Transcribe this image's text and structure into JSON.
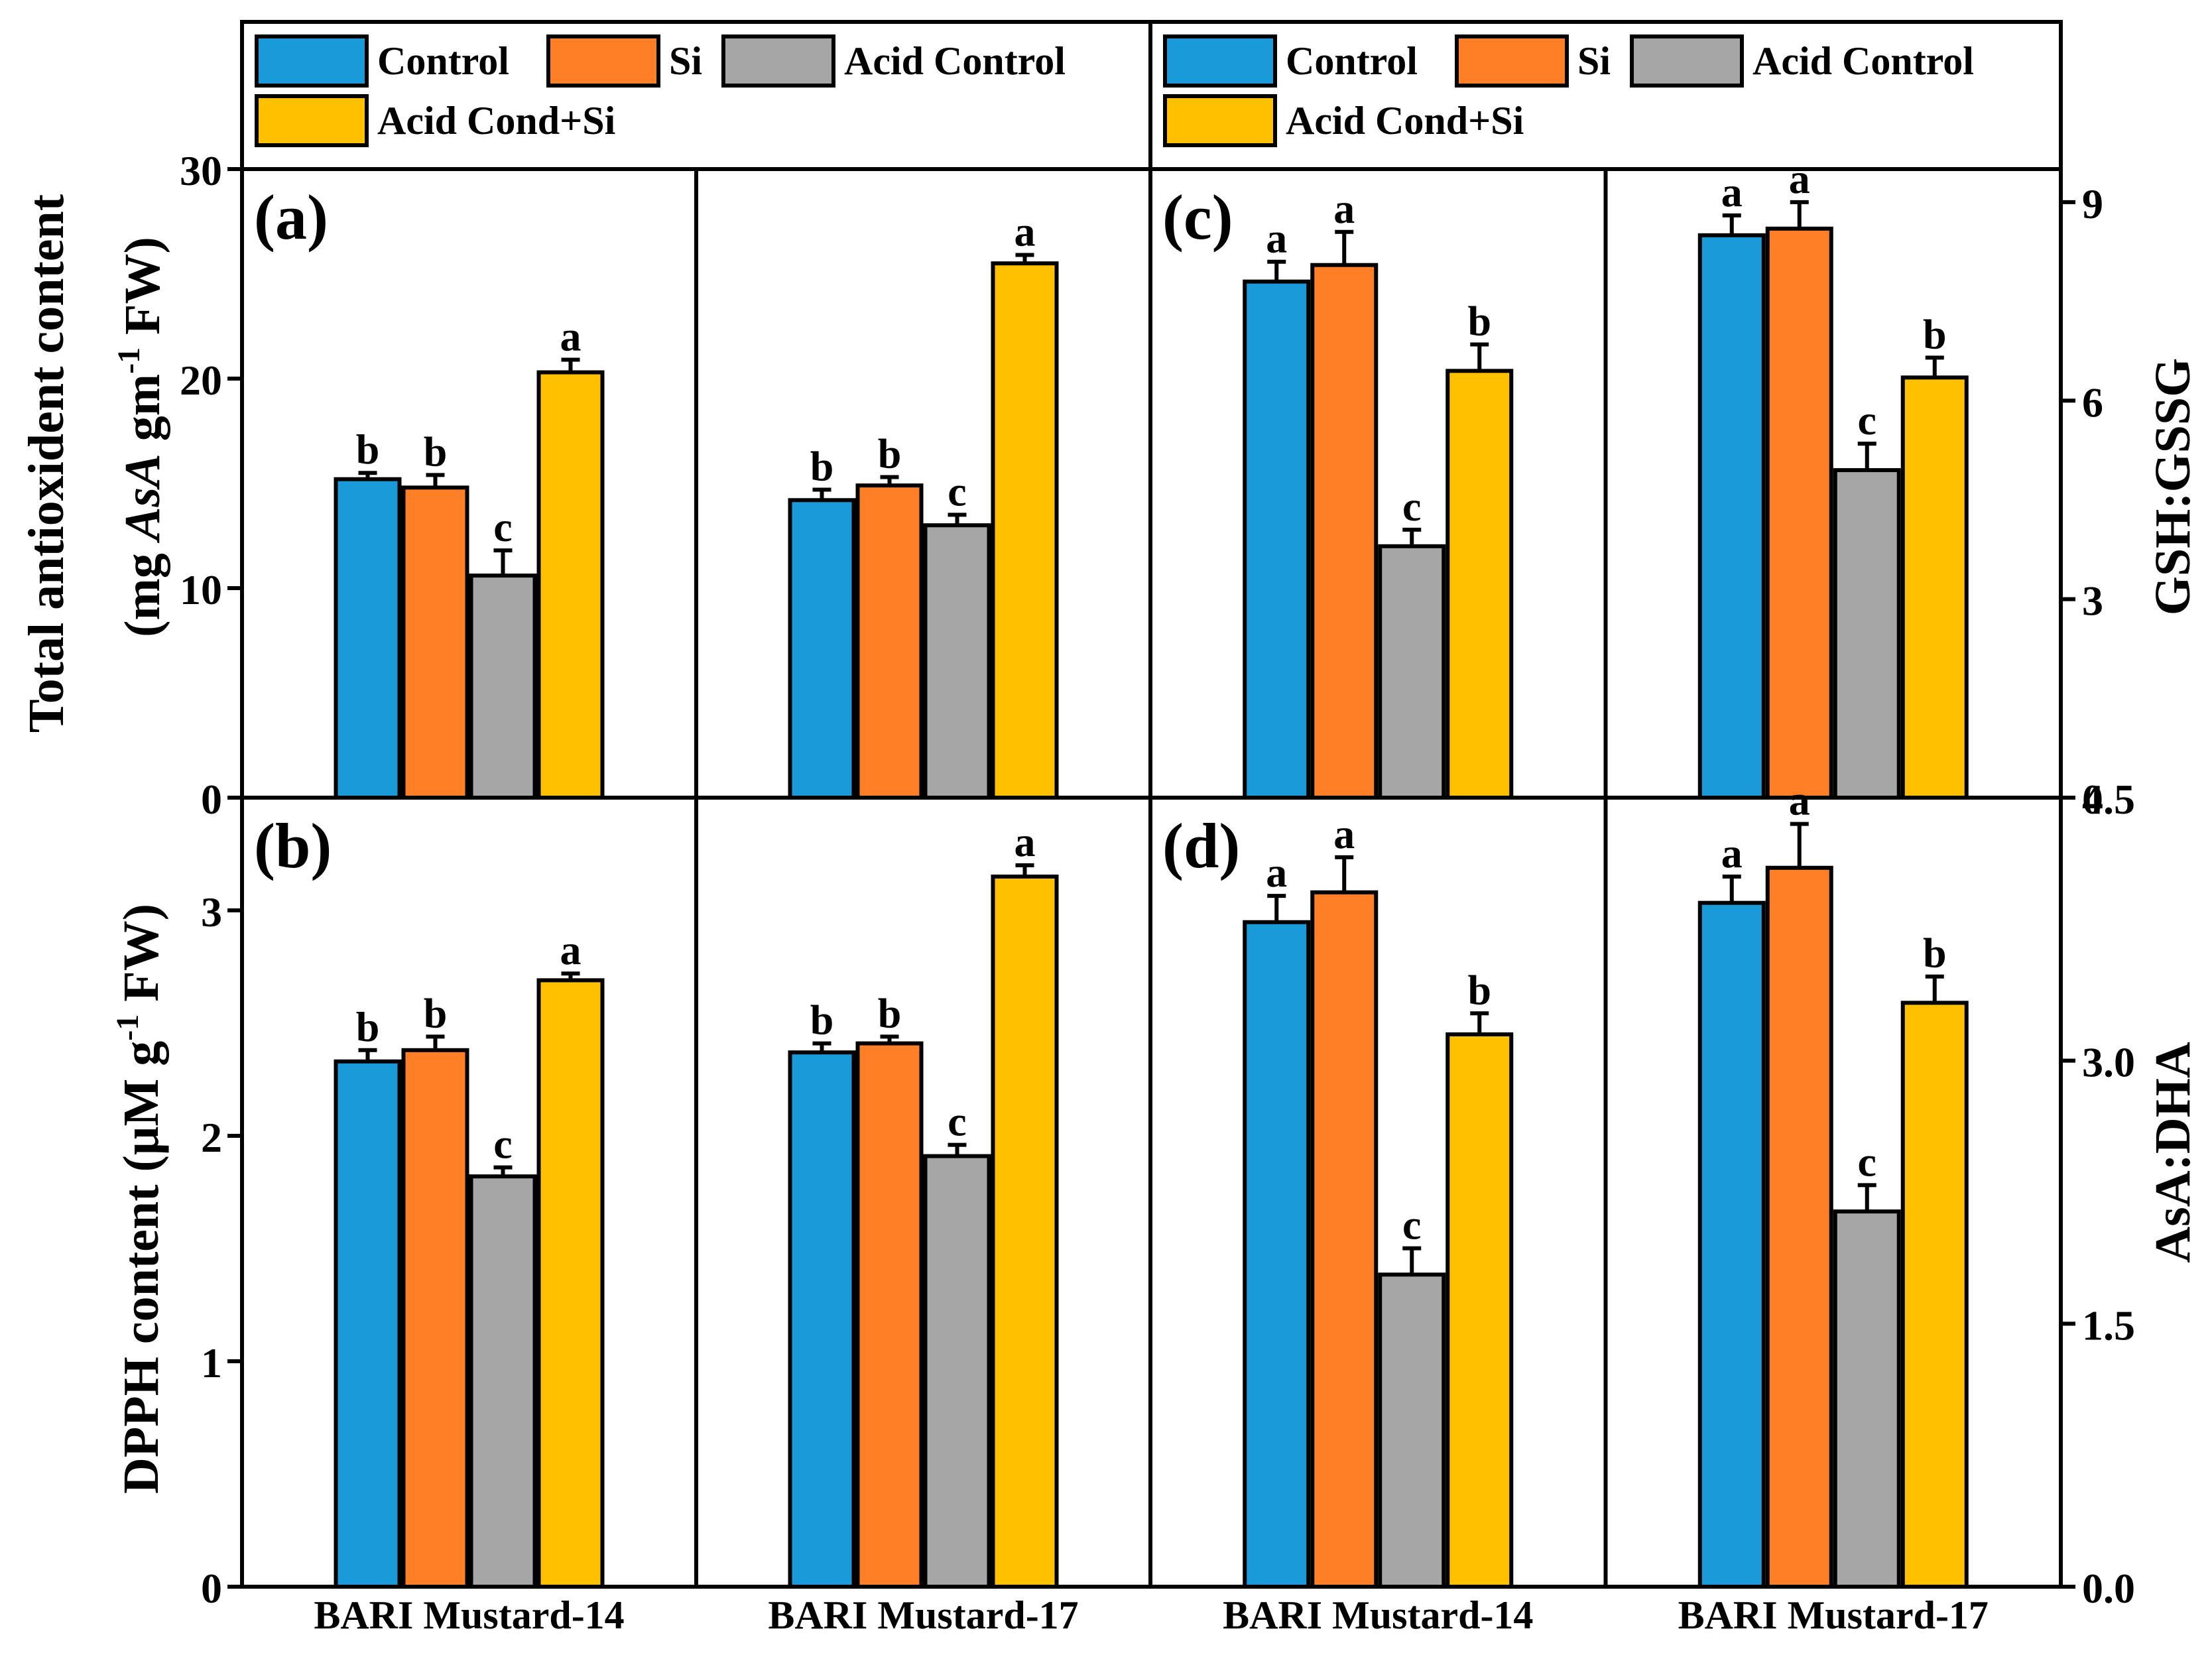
{
  "colors": {
    "Control": "#1B9AD9",
    "Si": "#FF7F27",
    "Acid Control": "#A6A6A6",
    "Acid Cond+Si": "#FFC000"
  },
  "legend": {
    "labels": [
      "Control",
      "Si",
      "Acid Control",
      "Acid Cond+Si"
    ]
  },
  "chart_data": [
    {
      "id": "a",
      "panel_label": "(a)",
      "type": "bar",
      "ylabel_line1": "Total antioxident content",
      "ylabel_line2": "(mg AsA gm-1 FW)",
      "ylabel_parts": {
        "pre": "(mg ",
        "italic": "AsA",
        "mid": " gm",
        "sup": "-1",
        "post": " FW)"
      },
      "ylim": [
        0,
        30
      ],
      "yticks": [
        0,
        10,
        20,
        30
      ],
      "tick_labels": [
        "0",
        "10",
        "20",
        "30"
      ],
      "axis_side": "left",
      "categories": [
        "BARI Mustard-14",
        "BARI Mustard-17"
      ],
      "series": [
        {
          "name": "Control",
          "values": [
            15.2,
            14.2
          ],
          "errors": [
            0.3,
            0.5
          ],
          "letters": [
            "b",
            "b"
          ]
        },
        {
          "name": "Si",
          "values": [
            14.8,
            14.9
          ],
          "errors": [
            0.6,
            0.4
          ],
          "letters": [
            "b",
            "b"
          ]
        },
        {
          "name": "Acid Control",
          "values": [
            10.6,
            13.0
          ],
          "errors": [
            1.2,
            0.5
          ],
          "letters": [
            "c",
            "c"
          ]
        },
        {
          "name": "Acid Cond+Si",
          "values": [
            20.3,
            25.5
          ],
          "errors": [
            0.6,
            0.4
          ],
          "letters": [
            "a",
            "a"
          ]
        }
      ]
    },
    {
      "id": "b",
      "panel_label": "(b)",
      "type": "bar",
      "ylabel_line1": "DPPH content (µM g-1 FW)",
      "ylabel_parts": {
        "pre": "DPPH content (µM g",
        "sup": "-1",
        "post": " FW)"
      },
      "ylim": [
        0,
        3.5
      ],
      "yticks": [
        0,
        1,
        2,
        3
      ],
      "tick_labels": [
        "0",
        "1",
        "2",
        "3"
      ],
      "axis_side": "left",
      "categories": [
        "BARI Mustard-14",
        "BARI Mustard-17"
      ],
      "series": [
        {
          "name": "Control",
          "values": [
            2.33,
            2.37
          ],
          "errors": [
            0.05,
            0.04
          ],
          "letters": [
            "b",
            "b"
          ]
        },
        {
          "name": "Si",
          "values": [
            2.38,
            2.41
          ],
          "errors": [
            0.06,
            0.03
          ],
          "letters": [
            "b",
            "b"
          ]
        },
        {
          "name": "Acid Control",
          "values": [
            1.82,
            1.91
          ],
          "errors": [
            0.04,
            0.05
          ],
          "letters": [
            "c",
            "c"
          ]
        },
        {
          "name": "Acid Cond+Si",
          "values": [
            2.69,
            3.15
          ],
          "errors": [
            0.03,
            0.05
          ],
          "letters": [
            "a",
            "a"
          ]
        }
      ]
    },
    {
      "id": "c",
      "panel_label": "(c)",
      "type": "bar",
      "ylabel_line1": "GSH:GSSG",
      "ylim": [
        0,
        9.5
      ],
      "yticks": [
        0,
        3,
        6,
        9
      ],
      "tick_labels": [
        "0",
        "3",
        "6",
        "9"
      ],
      "axis_side": "right",
      "categories": [
        "BARI Mustard-14",
        "BARI Mustard-17"
      ],
      "series": [
        {
          "name": "Control",
          "values": [
            7.8,
            8.5
          ],
          "errors": [
            0.3,
            0.3
          ],
          "letters": [
            "a",
            "a"
          ]
        },
        {
          "name": "Si",
          "values": [
            8.05,
            8.6
          ],
          "errors": [
            0.5,
            0.4
          ],
          "letters": [
            "a",
            "a"
          ]
        },
        {
          "name": "Acid Control",
          "values": [
            3.8,
            4.95
          ],
          "errors": [
            0.25,
            0.4
          ],
          "letters": [
            "c",
            "c"
          ]
        },
        {
          "name": "Acid Cond+Si",
          "values": [
            6.45,
            6.35
          ],
          "errors": [
            0.4,
            0.3
          ],
          "letters": [
            "b",
            "b"
          ]
        }
      ]
    },
    {
      "id": "d",
      "panel_label": "(d)",
      "type": "bar",
      "ylabel_line1": "AsA:DHA",
      "ylim": [
        0,
        4.5
      ],
      "yticks": [
        0,
        1.5,
        3.0,
        4.5
      ],
      "tick_labels": [
        "0.0",
        "1.5",
        "3.0",
        "4.5"
      ],
      "axis_side": "right",
      "categories": [
        "BARI Mustard-14",
        "BARI Mustard-17"
      ],
      "series": [
        {
          "name": "Control",
          "values": [
            3.79,
            3.9
          ],
          "errors": [
            0.15,
            0.15
          ],
          "letters": [
            "a",
            "a"
          ]
        },
        {
          "name": "Si",
          "values": [
            3.96,
            4.1
          ],
          "errors": [
            0.2,
            0.25
          ],
          "letters": [
            "a",
            "a"
          ]
        },
        {
          "name": "Acid Control",
          "values": [
            1.78,
            2.14
          ],
          "errors": [
            0.15,
            0.15
          ],
          "letters": [
            "c",
            "c"
          ]
        },
        {
          "name": "Acid Cond+Si",
          "values": [
            3.15,
            3.33
          ],
          "errors": [
            0.12,
            0.15
          ],
          "letters": [
            "b",
            "b"
          ]
        }
      ]
    }
  ]
}
